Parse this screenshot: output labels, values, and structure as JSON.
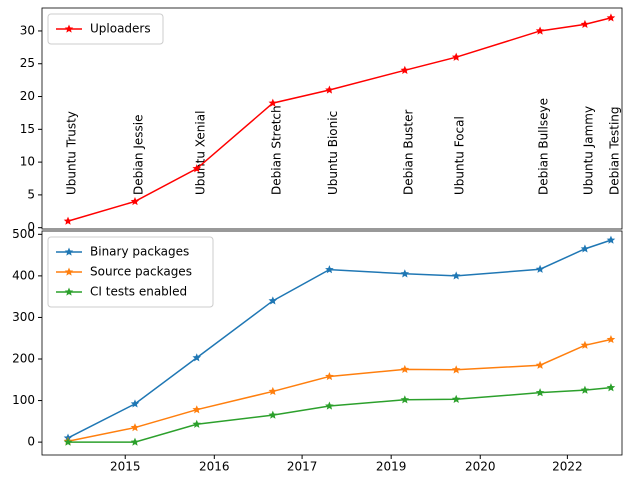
{
  "chart_data": [
    {
      "type": "line",
      "x": [
        2014.3,
        2015.33,
        2016.28,
        2017.45,
        2018.32,
        2019.48,
        2020.27,
        2021.56,
        2022.25,
        2022.65
      ],
      "point_labels": [
        "Ubuntu Trusty",
        "Debian Jessie",
        "Ubuntu Xenial",
        "Debian Stretch",
        "Ubuntu Bionic",
        "Debian Buster",
        "Ubuntu Focal",
        "Debian Bullseye",
        "Ubuntu Jammy",
        "Debian Testing"
      ],
      "series": [
        {
          "name": "Uploaders",
          "color": "#ff0000",
          "values": [
            1,
            4,
            9,
            19,
            21,
            24,
            26,
            30,
            31,
            32
          ]
        }
      ],
      "xlim": [
        2013.9,
        2022.82
      ],
      "ylim": [
        -0.2,
        33.5
      ],
      "yticks": [
        0,
        5,
        10,
        15,
        20,
        25,
        30
      ],
      "legend": "upper left"
    },
    {
      "type": "line",
      "x": [
        2014.3,
        2015.33,
        2016.28,
        2017.45,
        2018.32,
        2019.48,
        2020.27,
        2021.56,
        2022.25,
        2022.65
      ],
      "series": [
        {
          "name": "Binary packages",
          "color": "#1f77b4",
          "values": [
            10,
            92,
            203,
            340,
            415,
            405,
            400,
            416,
            465,
            486
          ]
        },
        {
          "name": "Source packages",
          "color": "#ff7f0e",
          "values": [
            2,
            35,
            78,
            122,
            158,
            175,
            174,
            185,
            233,
            247
          ]
        },
        {
          "name": "CI tests enabled",
          "color": "#2ca02c",
          "values": [
            0,
            0,
            43,
            65,
            87,
            102,
            103,
            119,
            125,
            131
          ]
        }
      ],
      "xlim": [
        2013.9,
        2022.82
      ],
      "xticks": [
        {
          "value": 2015.18,
          "label": "2015"
        },
        {
          "value": 2016.55,
          "label": "2016"
        },
        {
          "value": 2017.9,
          "label": "2017"
        },
        {
          "value": 2019.27,
          "label": "2019"
        },
        {
          "value": 2020.64,
          "label": "2020"
        },
        {
          "value": 2021.98,
          "label": "2022"
        }
      ],
      "ylim": [
        -31,
        508
      ],
      "yticks": [
        0,
        100,
        200,
        300,
        400,
        500
      ],
      "legend": "upper left"
    }
  ]
}
